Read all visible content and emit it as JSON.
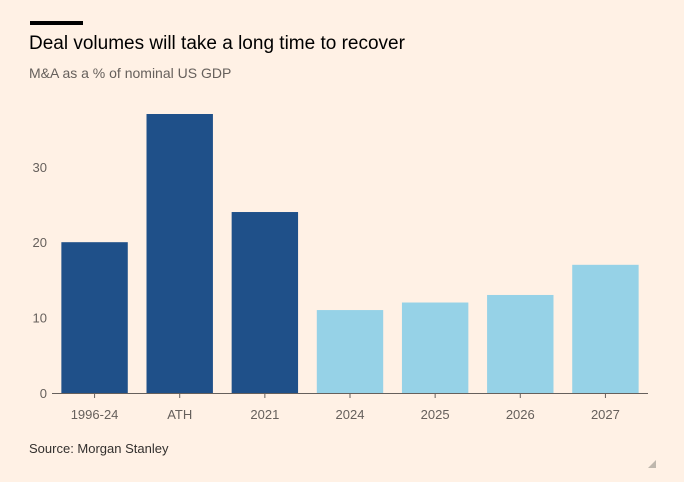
{
  "title": "Deal volumes will take a long time to recover",
  "subtitle": "M&A as a % of nominal US GDP",
  "source": "Source: Morgan Stanley",
  "chart_data": {
    "type": "bar",
    "title": "Deal volumes will take a long time to recover",
    "subtitle": "M&A as a % of nominal US GDP",
    "categories": [
      "1996-24",
      "ATH",
      "2021",
      "2024",
      "2025",
      "2026",
      "2027"
    ],
    "values": [
      20,
      37,
      24,
      11,
      12,
      13,
      17
    ],
    "bar_colors": [
      "#1f5089",
      "#1f5089",
      "#1f5089",
      "#96d2e7",
      "#96d2e7",
      "#96d2e7",
      "#96d2e7"
    ],
    "ylim": [
      0,
      37
    ],
    "yticks": [
      0,
      10,
      20,
      30
    ],
    "grid": false,
    "xlabel": "",
    "ylabel": ""
  }
}
